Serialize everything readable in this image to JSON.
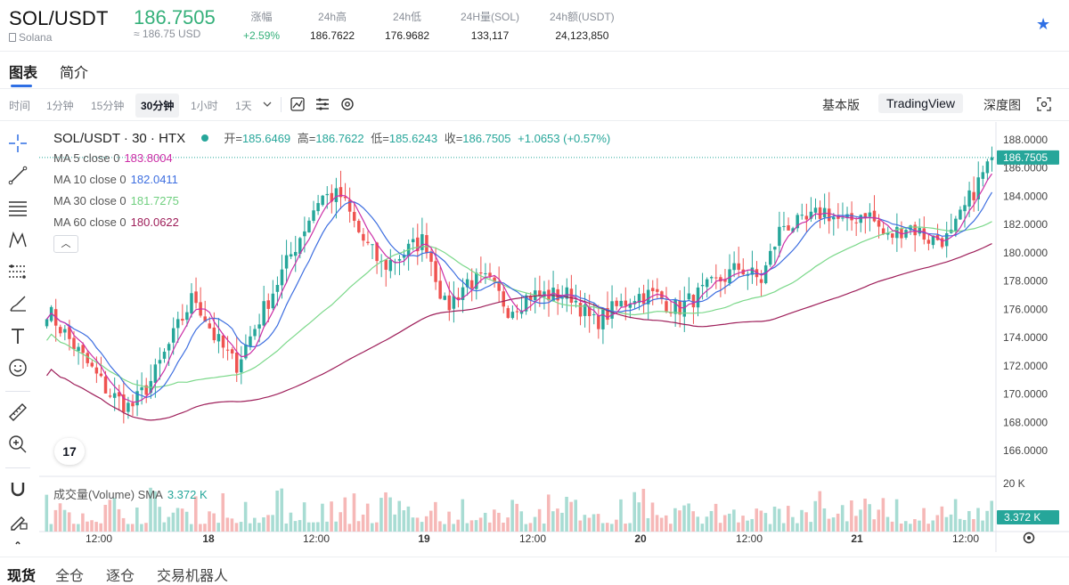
{
  "header": {
    "pair": "SOL/USDT",
    "name": "Solana",
    "price": "186.7505",
    "price_usd": "≈ 186.75 USD",
    "stats": [
      {
        "label": "涨幅",
        "value": "+2.59%",
        "up": true
      },
      {
        "label": "24h高",
        "value": "186.7622"
      },
      {
        "label": "24h低",
        "value": "176.9682"
      },
      {
        "label": "24H量(SOL)",
        "value": "133,117"
      },
      {
        "label": "24h额(USDT)",
        "value": "24,123,850"
      }
    ],
    "favorite_icon": "star-icon"
  },
  "tabs": [
    "图表",
    "简介"
  ],
  "toolbar": {
    "intervals": [
      "时间",
      "1分钟",
      "15分钟",
      "30分钟",
      "1小时",
      "1天"
    ],
    "selected_interval": "30分钟",
    "views": [
      "基本版",
      "TradingView",
      "深度图"
    ],
    "selected_view": "TradingView"
  },
  "legend": {
    "title": "SOL/USDT · 30 · HTX",
    "open_label": "开=",
    "open": "185.6469",
    "high_label": "高=",
    "high": "186.7622",
    "low_label": "低=",
    "low": "185.6243",
    "close_label": "收=",
    "close": "186.7505",
    "change": "+1.0653 (+0.57%)",
    "ma": [
      {
        "label": "MA 5 close 0",
        "value": "183.8004",
        "color": "#cc2fa7"
      },
      {
        "label": "MA 10 close 0",
        "value": "182.0411",
        "color": "#3d6ee0"
      },
      {
        "label": "MA 30 close 0",
        "value": "181.7275",
        "color": "#7bd88a"
      },
      {
        "label": "MA 60 close 0",
        "value": "180.0622",
        "color": "#9e1f5a"
      }
    ],
    "volume_label": "成交量(Volume) SMA",
    "volume_value": "3.372 K"
  },
  "price_axis": {
    "ticks": [
      "188.0000",
      "186.0000",
      "184.0000",
      "182.0000",
      "180.0000",
      "178.0000",
      "176.0000",
      "174.0000",
      "172.0000",
      "170.0000",
      "168.0000",
      "166.0000"
    ],
    "current_label": "186.7505",
    "volume_ticks": [
      "20 K"
    ],
    "volume_current": "3.372 K"
  },
  "time_axis": [
    "12:00",
    "18",
    "12:00",
    "19",
    "12:00",
    "20",
    "12:00",
    "21",
    "12:00"
  ],
  "bottom_tabs": [
    "现货",
    "全仓",
    "逐仓",
    "交易机器人"
  ],
  "chart_data": {
    "type": "candlestick",
    "ylim": [
      165,
      189
    ],
    "ticks_y": [
      166,
      168,
      170,
      172,
      174,
      176,
      178,
      180,
      182,
      184,
      186,
      188
    ],
    "last_close": 186.7505,
    "key_closes": [
      176,
      174,
      172,
      170,
      169,
      171,
      174,
      177,
      174,
      172,
      175,
      178,
      181,
      184,
      184,
      181,
      179,
      180,
      181,
      176,
      178,
      178,
      176,
      177,
      177,
      177,
      175,
      176,
      177,
      177,
      176,
      177,
      178,
      179,
      178,
      182,
      182,
      183,
      182,
      183,
      181,
      182,
      181,
      181,
      184,
      186.75
    ],
    "ma_colors": {
      "ma5": "#cc2fa7",
      "ma10": "#3d6ee0",
      "ma30": "#7bd88a",
      "ma60": "#9e1f5a"
    },
    "up_color": "#26a69a",
    "down_color": "#ef5350"
  }
}
